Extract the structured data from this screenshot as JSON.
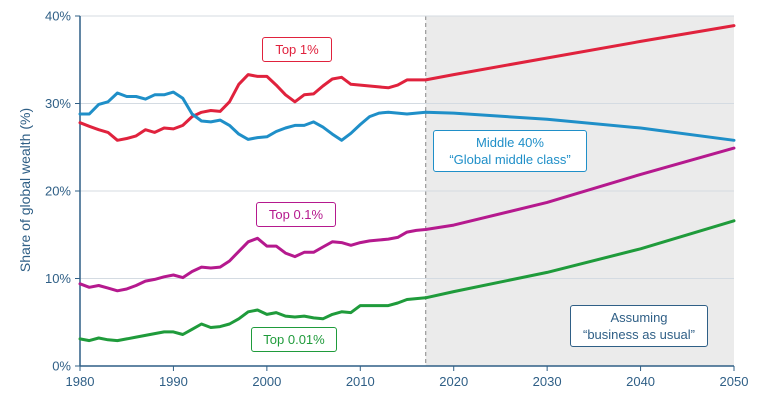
{
  "chart_data": {
    "type": "line",
    "ylabel": "Share of global wealth (%)",
    "xlim": [
      1980,
      2050
    ],
    "ylim": [
      0,
      40
    ],
    "x_ticks": [
      1980,
      1990,
      2000,
      2010,
      2020,
      2030,
      2040,
      2050
    ],
    "y_ticks": [
      0,
      10,
      20,
      30,
      40
    ],
    "y_tick_labels": [
      "0%",
      "10%",
      "20%",
      "30%",
      "40%"
    ],
    "projection_start": 2017,
    "projection_note": "Assuming “business as usual”",
    "series": [
      {
        "name": "Top 1%",
        "color": "#e0223d",
        "x": [
          1980,
          1981,
          1982,
          1983,
          1984,
          1985,
          1986,
          1987,
          1988,
          1989,
          1990,
          1991,
          1992,
          1993,
          1994,
          1995,
          1996,
          1997,
          1998,
          1999,
          2000,
          2001,
          2002,
          2003,
          2004,
          2005,
          2006,
          2007,
          2008,
          2009,
          2010,
          2011,
          2012,
          2013,
          2014,
          2015,
          2016,
          2017,
          2020,
          2030,
          2040,
          2050
        ],
        "y": [
          27.8,
          27.4,
          27.0,
          26.7,
          25.8,
          26.0,
          26.3,
          27.0,
          26.7,
          27.2,
          27.1,
          27.5,
          28.5,
          29.0,
          29.2,
          29.1,
          30.2,
          32.2,
          33.3,
          33.1,
          33.1,
          32.1,
          31.0,
          30.2,
          31.0,
          31.1,
          32.0,
          32.8,
          33.0,
          32.2,
          32.1,
          32.0,
          31.9,
          31.8,
          32.1,
          32.7,
          32.7,
          32.7,
          33.3,
          35.2,
          37.1,
          38.9
        ]
      },
      {
        "name": "Middle 40%",
        "color": "#1f8fc8",
        "x": [
          1980,
          1981,
          1982,
          1983,
          1984,
          1985,
          1986,
          1987,
          1988,
          1989,
          1990,
          1991,
          1992,
          1993,
          1994,
          1995,
          1996,
          1997,
          1998,
          1999,
          2000,
          2001,
          2002,
          2003,
          2004,
          2005,
          2006,
          2007,
          2008,
          2009,
          2010,
          2011,
          2012,
          2013,
          2014,
          2015,
          2016,
          2017,
          2020,
          2030,
          2040,
          2050
        ],
        "y": [
          28.8,
          28.8,
          29.9,
          30.2,
          31.2,
          30.8,
          30.8,
          30.5,
          31.0,
          31.0,
          31.3,
          30.6,
          28.8,
          28.0,
          27.9,
          28.1,
          27.5,
          26.5,
          25.9,
          26.1,
          26.2,
          26.8,
          27.2,
          27.5,
          27.5,
          27.9,
          27.3,
          26.5,
          25.8,
          26.6,
          27.6,
          28.5,
          28.9,
          29.0,
          28.9,
          28.8,
          28.9,
          29.0,
          28.9,
          28.2,
          27.2,
          25.8
        ]
      },
      {
        "name": "Top 0.1%",
        "color": "#b5198e",
        "x": [
          1980,
          1981,
          1982,
          1983,
          1984,
          1985,
          1986,
          1987,
          1988,
          1989,
          1990,
          1991,
          1992,
          1993,
          1994,
          1995,
          1996,
          1997,
          1998,
          1999,
          2000,
          2001,
          2002,
          2003,
          2004,
          2005,
          2006,
          2007,
          2008,
          2009,
          2010,
          2011,
          2012,
          2013,
          2014,
          2015,
          2016,
          2017,
          2020,
          2030,
          2040,
          2050
        ],
        "y": [
          9.4,
          9.0,
          9.2,
          8.9,
          8.6,
          8.8,
          9.2,
          9.7,
          9.9,
          10.2,
          10.4,
          10.1,
          10.8,
          11.3,
          11.2,
          11.3,
          12.0,
          13.1,
          14.2,
          14.6,
          13.7,
          13.7,
          12.9,
          12.5,
          13.0,
          13.0,
          13.6,
          14.2,
          14.1,
          13.8,
          14.1,
          14.3,
          14.4,
          14.5,
          14.7,
          15.3,
          15.5,
          15.6,
          16.1,
          18.7,
          21.9,
          24.9
        ]
      },
      {
        "name": "Top 0.01%",
        "color": "#1f9b3b",
        "x": [
          1980,
          1981,
          1982,
          1983,
          1984,
          1985,
          1986,
          1987,
          1988,
          1989,
          1990,
          1991,
          1992,
          1993,
          1994,
          1995,
          1996,
          1997,
          1998,
          1999,
          2000,
          2001,
          2002,
          2003,
          2004,
          2005,
          2006,
          2007,
          2008,
          2009,
          2010,
          2011,
          2012,
          2013,
          2014,
          2015,
          2016,
          2017,
          2020,
          2030,
          2040,
          2050
        ],
        "y": [
          3.1,
          2.9,
          3.2,
          3.0,
          2.9,
          3.1,
          3.3,
          3.5,
          3.7,
          3.9,
          3.9,
          3.6,
          4.2,
          4.8,
          4.4,
          4.5,
          4.8,
          5.4,
          6.2,
          6.4,
          5.9,
          6.1,
          5.7,
          5.6,
          5.7,
          5.5,
          5.4,
          5.9,
          6.2,
          6.1,
          6.9,
          6.9,
          6.9,
          6.9,
          7.2,
          7.6,
          7.7,
          7.8,
          8.5,
          10.7,
          13.4,
          16.6
        ]
      }
    ]
  },
  "labels": {
    "top1": "Top 1%",
    "middle40_line1": "Middle 40%",
    "middle40_line2": "“Global middle class”",
    "top01": "Top 0.1%",
    "top001": "Top 0.01%",
    "note_line1": "Assuming",
    "note_line2": "“business as usual”"
  }
}
